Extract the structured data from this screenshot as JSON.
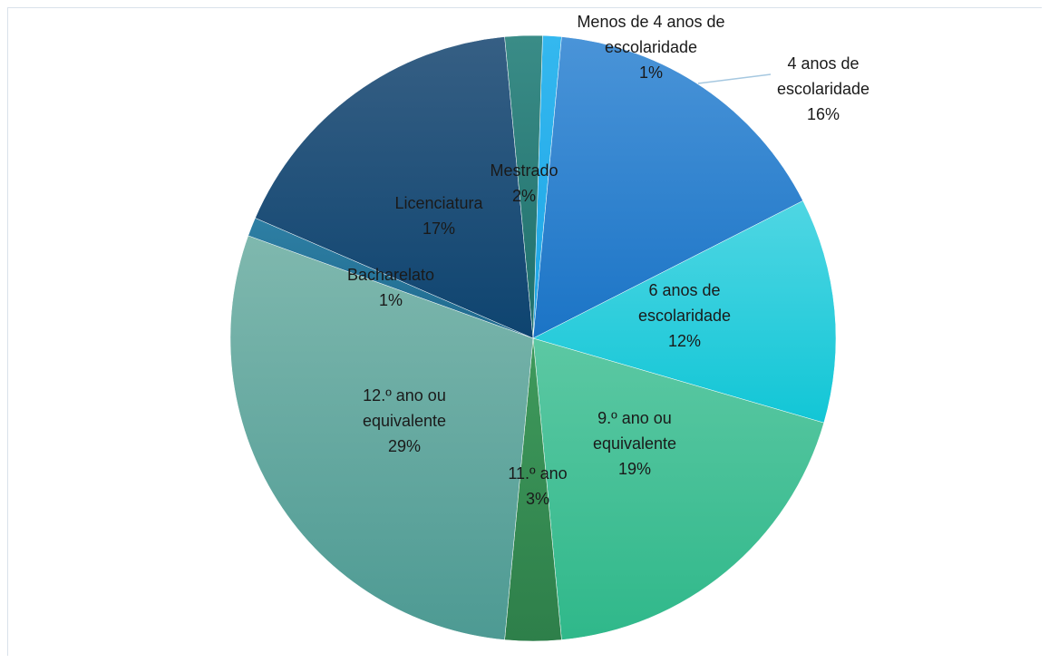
{
  "chart_data": {
    "type": "pie",
    "title": "",
    "categories": [
      "Menos de 4 anos de escolaridade",
      "4 anos de escolaridade",
      "6 anos de escolaridade",
      "9.º ano ou equivalente",
      "11.º ano",
      "12.º ano ou equivalente",
      "Bacharelato",
      "Licenciatura",
      "Mestrado"
    ],
    "values": [
      1,
      16,
      12,
      19,
      3,
      29,
      1,
      17,
      2
    ],
    "value_labels": [
      "1%",
      "16%",
      "12%",
      "19%",
      "3%",
      "29%",
      "1%",
      "17%",
      "2%"
    ],
    "colors": [
      [
        "#34b8ef",
        "#1ea5e6"
      ],
      [
        "#4a94d8",
        "#1b74c6"
      ],
      [
        "#4fd6e3",
        "#12c6d6"
      ],
      [
        "#5cc8a3",
        "#2fb88a"
      ],
      [
        "#3f9a5c",
        "#2e7f4a"
      ],
      [
        "#7fb8ae",
        "#4d9a93"
      ],
      [
        "#2e7fa4",
        "#1f6a8e"
      ],
      [
        "#365f84",
        "#0e4470"
      ],
      [
        "#3a8c87",
        "#1f6f6b"
      ]
    ],
    "legend": "none",
    "label_lines": [
      [
        "Menos de 4 anos de",
        "escolaridade",
        "1%"
      ],
      [
        "4 anos de",
        "escolaridade",
        "16%"
      ],
      [
        "6 anos de",
        "escolaridade",
        "12%"
      ],
      [
        "9.º ano ou",
        "equivalente",
        "19%"
      ],
      [
        "11.º ano",
        "3%"
      ],
      [
        "12.º ano ou",
        "equivalente",
        "29%"
      ],
      [
        "Bacharelato",
        "1%"
      ],
      [
        "Licenciatura",
        "17%"
      ],
      [
        "Mestrado",
        "2%"
      ]
    ]
  }
}
